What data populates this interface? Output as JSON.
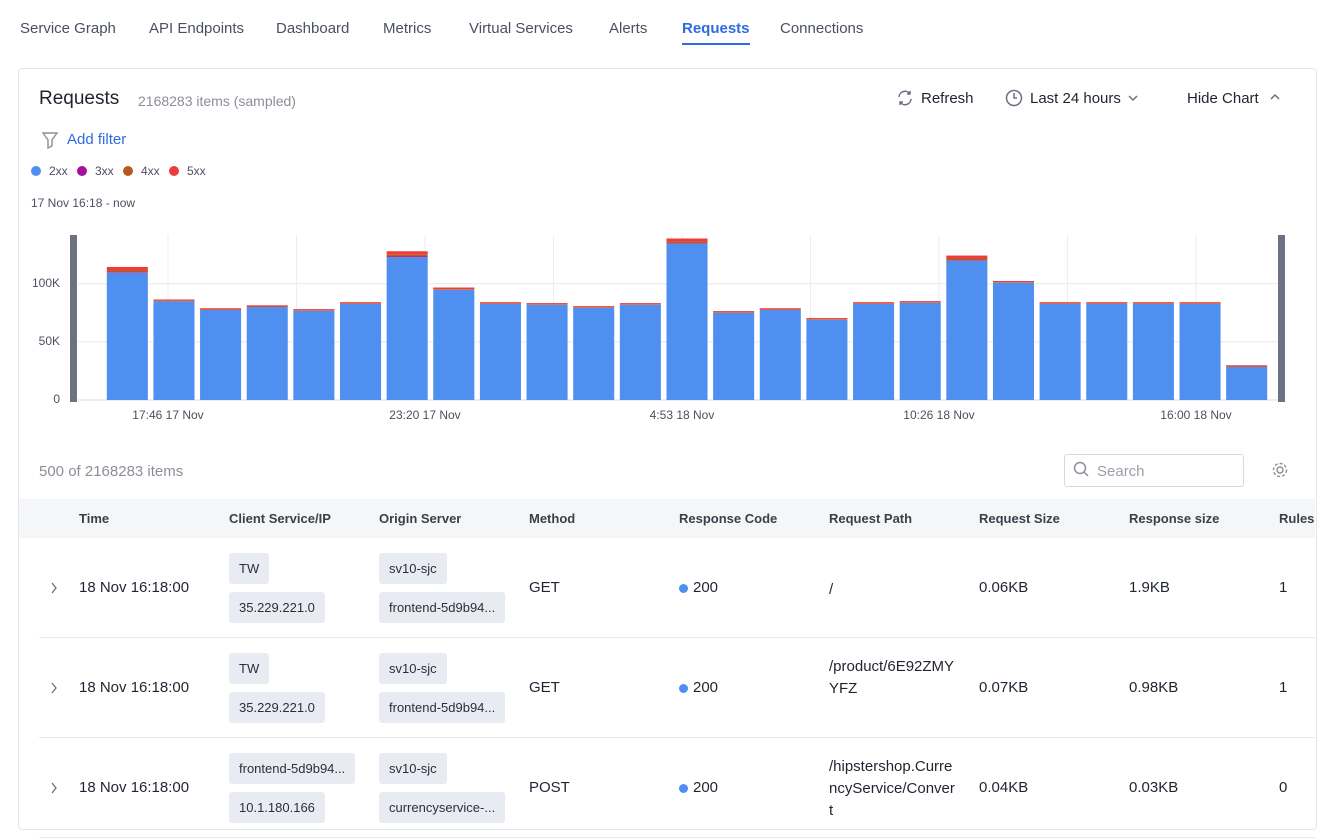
{
  "nav": {
    "tabs": [
      "Service Graph",
      "API Endpoints",
      "Dashboard",
      "Metrics",
      "Virtual Services",
      "Alerts",
      "Requests",
      "Connections"
    ],
    "active": 6
  },
  "header": {
    "title": "Requests",
    "count": "2168283 items (sampled)",
    "refresh": "Refresh",
    "range": "Last 24 hours",
    "toggle": "Hide Chart",
    "filter": "Add filter",
    "time_span": "17 Nov 16:18 - now"
  },
  "chart_data": {
    "type": "bar",
    "stacked": true,
    "categories": [
      null,
      null,
      null,
      null,
      null,
      null,
      null,
      null,
      null,
      null,
      null,
      null,
      null,
      null,
      null,
      null,
      null,
      null,
      null,
      null,
      null,
      null,
      null,
      null,
      null
    ],
    "series": [
      {
        "name": "2xx",
        "color": "#4e8ff0",
        "values": [
          109500,
          85000,
          77500,
          80000,
          76700,
          82700,
          123000,
          94800,
          82700,
          81900,
          79300,
          81900,
          134500,
          75000,
          77500,
          69000,
          82700,
          83600,
          119800,
          100900,
          82700,
          82700,
          82700,
          82700,
          28400
        ]
      },
      {
        "name": "3xx",
        "color": "#a3119c",
        "values": [
          500,
          0,
          0,
          0,
          0,
          0,
          500,
          0,
          0,
          0,
          0,
          0,
          500,
          0,
          0,
          0,
          0,
          0,
          500,
          0,
          0,
          0,
          0,
          0,
          0
        ]
      },
      {
        "name": "4xx",
        "color": "#b65a22",
        "values": [
          1500,
          500,
          500,
          500,
          500,
          500,
          1500,
          500,
          500,
          500,
          500,
          500,
          1500,
          500,
          500,
          500,
          500,
          500,
          1500,
          500,
          500,
          500,
          500,
          500,
          500
        ]
      },
      {
        "name": "5xx",
        "color": "#ee3b3b",
        "values": [
          3000,
          1000,
          1000,
          1000,
          1000,
          1000,
          3000,
          1500,
          1000,
          1000,
          1000,
          1000,
          2500,
          1000,
          1000,
          1000,
          1000,
          1000,
          2500,
          1000,
          1000,
          1000,
          1000,
          1000,
          1000
        ]
      }
    ],
    "ylim": [
      0,
      142000
    ],
    "yticks": [
      0,
      {
        "value": 50000,
        "label": "50K"
      },
      {
        "value": 100000,
        "label": "100K"
      }
    ],
    "xtick_labels": [
      "17:46 17 Nov",
      "23:20 17 Nov",
      "4:53 18 Nov",
      "10:26 18 Nov",
      "16:00 18 Nov"
    ],
    "grid": true
  },
  "table": {
    "summary": "500 of 2168283 items",
    "search": "Search",
    "columns": [
      "Time",
      "Client Service/IP",
      "Origin Server",
      "Method",
      "Response Code",
      "Request Path",
      "Request Size",
      "Response size",
      "Rules"
    ],
    "rows": [
      {
        "time": "18 Nov 16:18:00",
        "client": [
          "TW",
          "35.229.221.0"
        ],
        "origin": [
          "sv10-sjc",
          "frontend-5d9b94..."
        ],
        "method": "GET",
        "code": "200",
        "path": "/",
        "req_size": "0.06KB",
        "resp_size": "1.9KB",
        "rules": "1"
      },
      {
        "time": "18 Nov 16:18:00",
        "client": [
          "TW",
          "35.229.221.0"
        ],
        "origin": [
          "sv10-sjc",
          "frontend-5d9b94..."
        ],
        "method": "GET",
        "code": "200",
        "path": "/product/6E92ZMYYFZ",
        "req_size": "0.07KB",
        "resp_size": "0.98KB",
        "rules": "1"
      },
      {
        "time": "18 Nov 16:18:00",
        "client": [
          "frontend-5d9b94...",
          "10.1.180.166"
        ],
        "origin": [
          "sv10-sjc",
          "currencyservice-..."
        ],
        "method": "POST",
        "code": "200",
        "path": "/hipstershop.CurrencyService/Convert",
        "req_size": "0.04KB",
        "resp_size": "0.03KB",
        "rules": "0"
      }
    ]
  }
}
